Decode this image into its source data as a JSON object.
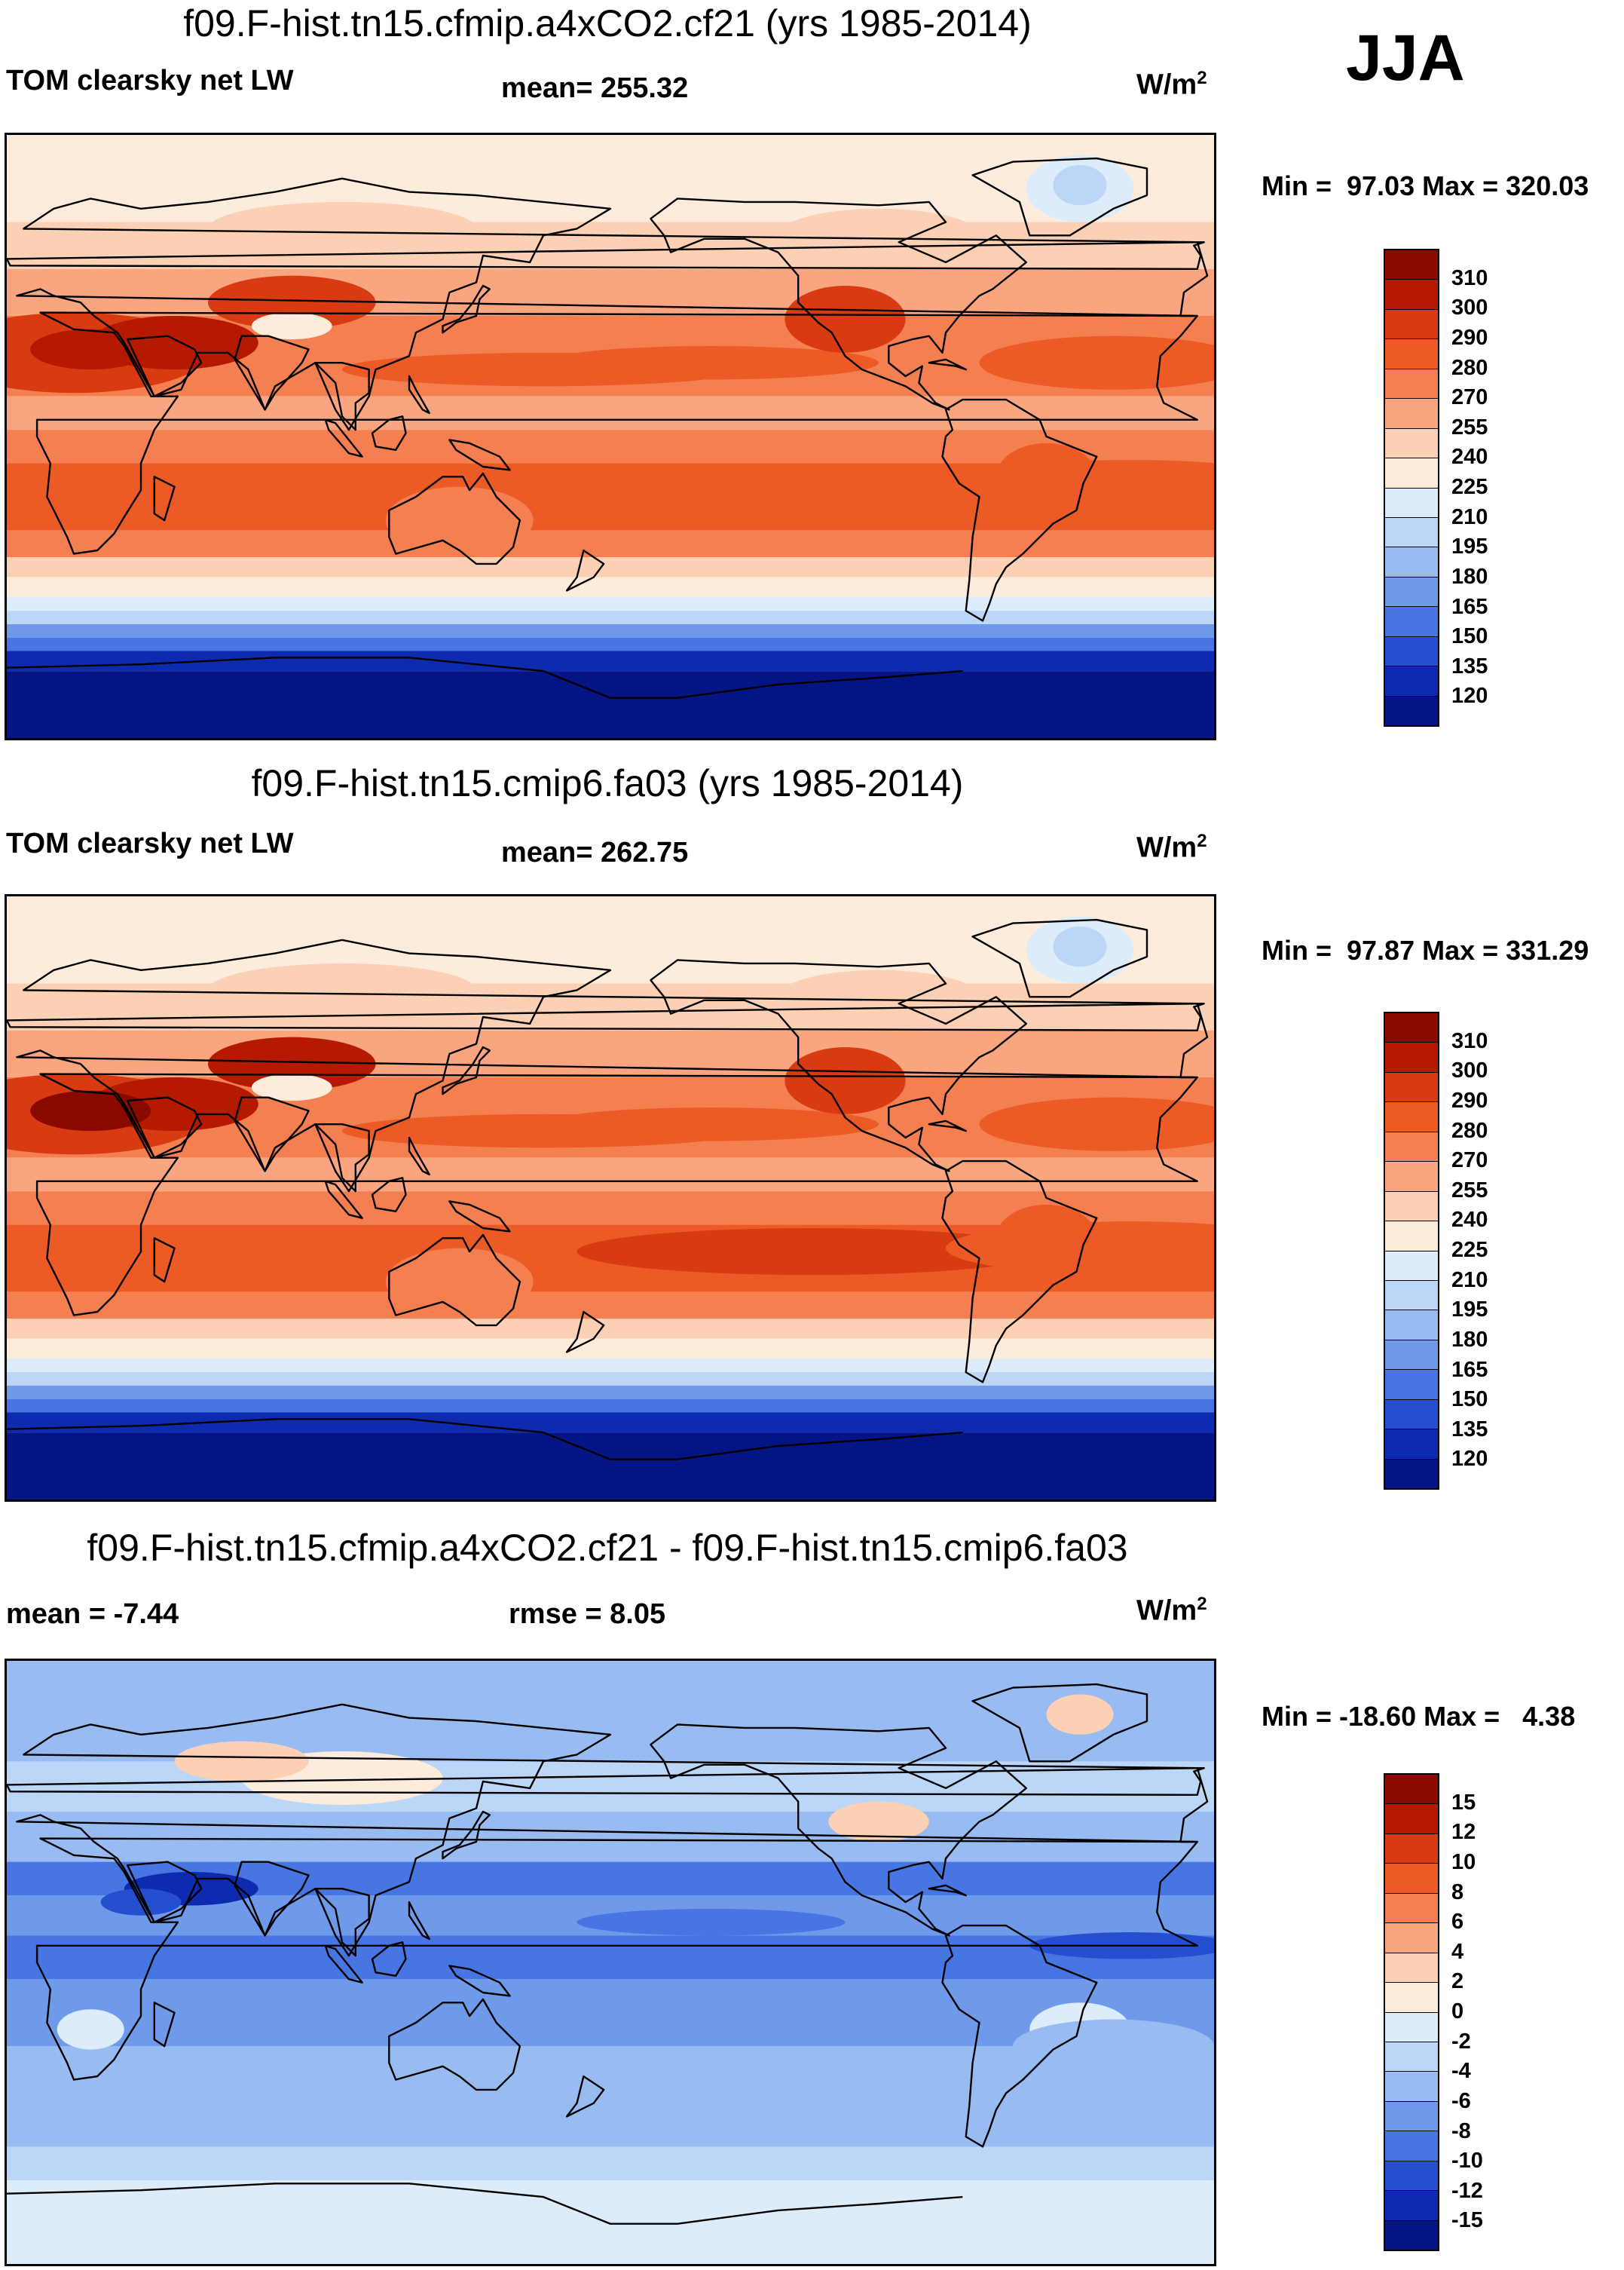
{
  "season": "JJA",
  "panels": [
    {
      "title": "f09.F-hist.tn15.cfmip.a4xCO2.cf21 (yrs 1985-2014)",
      "left_label": "TOM clearsky net LW",
      "center_label": "mean= 255.32",
      "units": "W/m",
      "units_sup": "2",
      "minmax": "Min =  97.03 Max = 320.03",
      "colorbar_labels": [
        "310",
        "300",
        "290",
        "280",
        "270",
        "255",
        "240",
        "225",
        "210",
        "195",
        "180",
        "165",
        "150",
        "135",
        "120"
      ],
      "kind": "abs",
      "variant": 0
    },
    {
      "title": "f09.F-hist.tn15.cmip6.fa03 (yrs 1985-2014)",
      "left_label": "TOM clearsky net LW",
      "center_label": "mean= 262.75",
      "units": "W/m",
      "units_sup": "2",
      "minmax": "Min =  97.87 Max = 331.29",
      "colorbar_labels": [
        "310",
        "300",
        "290",
        "280",
        "270",
        "255",
        "240",
        "225",
        "210",
        "195",
        "180",
        "165",
        "150",
        "135",
        "120"
      ],
      "kind": "abs",
      "variant": 1
    },
    {
      "title": "f09.F-hist.tn15.cfmip.a4xCO2.cf21 - f09.F-hist.tn15.cmip6.fa03",
      "left_label": "mean =  -7.44",
      "center_label": "rmse =    8.05",
      "units": "W/m",
      "units_sup": "2",
      "minmax": "Min = -18.60 Max =   4.38",
      "colorbar_labels": [
        "15",
        "12",
        "10",
        "8",
        "6",
        "4",
        "2",
        "0",
        "-2",
        "-4",
        "-6",
        "-8",
        "-10",
        "-12",
        "-15"
      ],
      "kind": "diff",
      "variant": 2
    }
  ],
  "colors": {
    "scale": [
      "#8b0a00",
      "#b51a00",
      "#d83a12",
      "#ec5a26",
      "#f48052",
      "#f9a57f",
      "#fcd0b5",
      "#fdebdc",
      "#dcecfb",
      "#bcd6f7",
      "#98bcf1",
      "#6f9aea",
      "#4776e2",
      "#2450d0",
      "#0e2bb0",
      "#061585"
    ]
  },
  "chart_data": {
    "type": "heatmap",
    "title": "JJA",
    "subplots": [
      {
        "title": "f09.F-hist.tn15.cfmip.a4xCO2.cf21 (yrs 1985-2014)",
        "variable": "TOM clearsky net LW",
        "mean": 255.32,
        "min": 97.03,
        "max": 320.03,
        "units": "W/m2",
        "levels": [
          120,
          135,
          150,
          165,
          180,
          195,
          210,
          225,
          240,
          255,
          270,
          280,
          290,
          300,
          310
        ]
      },
      {
        "title": "f09.F-hist.tn15.cmip6.fa03 (yrs 1985-2014)",
        "variable": "TOM clearsky net LW",
        "mean": 262.75,
        "min": 97.87,
        "max": 331.29,
        "units": "W/m2",
        "levels": [
          120,
          135,
          150,
          165,
          180,
          195,
          210,
          225,
          240,
          255,
          270,
          280,
          290,
          300,
          310
        ]
      },
      {
        "title": "f09.F-hist.tn15.cfmip.a4xCO2.cf21 - f09.F-hist.tn15.cmip6.fa03",
        "mean": -7.44,
        "rmse": 8.05,
        "min": -18.6,
        "max": 4.38,
        "units": "W/m2",
        "levels": [
          -15,
          -12,
          -10,
          -8,
          -6,
          -4,
          -2,
          0,
          2,
          4,
          6,
          8,
          10,
          12,
          15
        ]
      }
    ]
  }
}
